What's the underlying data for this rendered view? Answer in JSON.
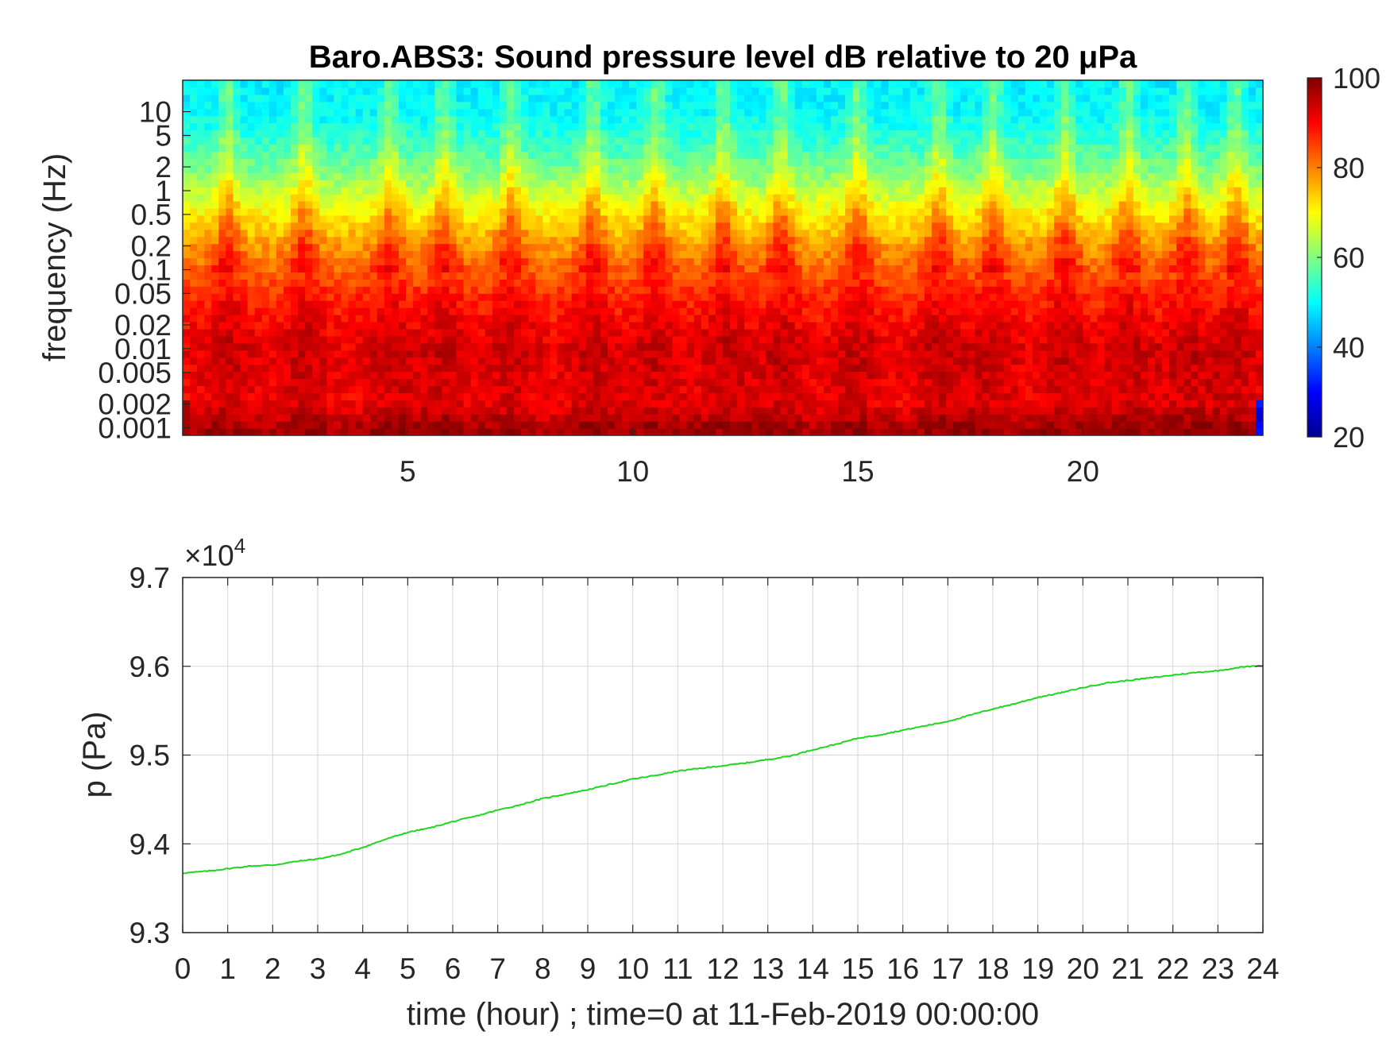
{
  "chart_data": [
    {
      "type": "heatmap",
      "title": "Baro.ABS3: Sound pressure level dB relative to 20 μPa",
      "ylabel": "frequency (Hz)",
      "xlabel": "",
      "x_ticks": [
        "5",
        "10",
        "15",
        "20"
      ],
      "x_tick_values": [
        5,
        10,
        15,
        20
      ],
      "xlim": [
        0,
        24
      ],
      "y_scale": "log",
      "ylim": [
        0.0008,
        25
      ],
      "y_ticks": [
        "10",
        "5",
        "2",
        "1",
        "0.5",
        "0.2",
        "0.1",
        "0.05",
        "0.02",
        "0.01",
        "0.005",
        "0.002",
        "0.001"
      ],
      "y_tick_values": [
        10,
        5,
        2,
        1,
        0.5,
        0.2,
        0.1,
        0.05,
        0.02,
        0.01,
        0.005,
        0.002,
        0.001
      ],
      "colormap": "jet",
      "colorbar": {
        "range": [
          20,
          100
        ],
        "ticks": [
          "100",
          "80",
          "60",
          "40",
          "20"
        ],
        "tick_values": [
          100,
          80,
          60,
          40,
          20
        ]
      },
      "spl_profile_db": [
        {
          "f": 0.001,
          "db": 94
        },
        {
          "f": 0.002,
          "db": 89
        },
        {
          "f": 0.005,
          "db": 90
        },
        {
          "f": 0.01,
          "db": 91
        },
        {
          "f": 0.02,
          "db": 89
        },
        {
          "f": 0.05,
          "db": 86
        },
        {
          "f": 0.1,
          "db": 82
        },
        {
          "f": 0.2,
          "db": 78
        },
        {
          "f": 0.5,
          "db": 71
        },
        {
          "f": 1,
          "db": 65
        },
        {
          "f": 2,
          "db": 59
        },
        {
          "f": 5,
          "db": 53
        },
        {
          "f": 10,
          "db": 50
        },
        {
          "f": 25,
          "db": 49
        }
      ],
      "bursts_hour": [
        1.0,
        2.7,
        4.6,
        5.8,
        7.3,
        9.1,
        10.5,
        12.0,
        13.3,
        15.0,
        16.8,
        18.0,
        19.6,
        21.0,
        22.3,
        23.4
      ]
    },
    {
      "type": "line",
      "title": "",
      "xlabel": "time (hour) ; time=0 at 11-Feb-2019 00:00:00",
      "ylabel": "p (Pa)",
      "y_exponent_base": "×10",
      "y_exponent_power": "4",
      "xlim": [
        0,
        24
      ],
      "ylim": [
        9.3,
        9.7
      ],
      "x_ticks": [
        "0",
        "1",
        "2",
        "3",
        "4",
        "5",
        "6",
        "7",
        "8",
        "9",
        "10",
        "11",
        "12",
        "13",
        "14",
        "15",
        "16",
        "17",
        "18",
        "19",
        "20",
        "21",
        "22",
        "23",
        "24"
      ],
      "x_tick_values": [
        0,
        1,
        2,
        3,
        4,
        5,
        6,
        7,
        8,
        9,
        10,
        11,
        12,
        13,
        14,
        15,
        16,
        17,
        18,
        19,
        20,
        21,
        22,
        23,
        24
      ],
      "y_ticks": [
        "9.7",
        "9.6",
        "9.5",
        "9.4",
        "9.3"
      ],
      "y_tick_values": [
        9.7,
        9.6,
        9.5,
        9.4,
        9.3
      ],
      "grid": true,
      "color": "#1fd61f",
      "series": [
        {
          "x": [
            0,
            0.5,
            1,
            1.5,
            2,
            2.5,
            3,
            3.5,
            4,
            4.5,
            5,
            5.5,
            6,
            6.5,
            7,
            7.5,
            8,
            8.5,
            9,
            9.5,
            10,
            10.5,
            11,
            11.5,
            12,
            12.5,
            13,
            13.5,
            14,
            14.5,
            15,
            15.5,
            16,
            16.5,
            17,
            17.5,
            18,
            18.5,
            19,
            19.5,
            20,
            20.5,
            21,
            21.5,
            22,
            22.5,
            23,
            23.5,
            24
          ],
          "y": [
            9.367,
            9.369,
            9.372,
            9.375,
            9.376,
            9.38,
            9.383,
            9.388,
            9.396,
            9.405,
            9.413,
            9.418,
            9.425,
            9.431,
            9.438,
            9.444,
            9.451,
            9.456,
            9.461,
            9.467,
            9.473,
            9.477,
            9.482,
            9.485,
            9.488,
            9.491,
            9.495,
            9.499,
            9.506,
            9.512,
            9.519,
            9.523,
            9.528,
            9.533,
            9.538,
            9.545,
            9.552,
            9.558,
            9.565,
            9.57,
            9.576,
            9.581,
            9.584,
            9.587,
            9.59,
            9.593,
            9.595,
            9.599,
            9.601
          ]
        }
      ]
    }
  ]
}
